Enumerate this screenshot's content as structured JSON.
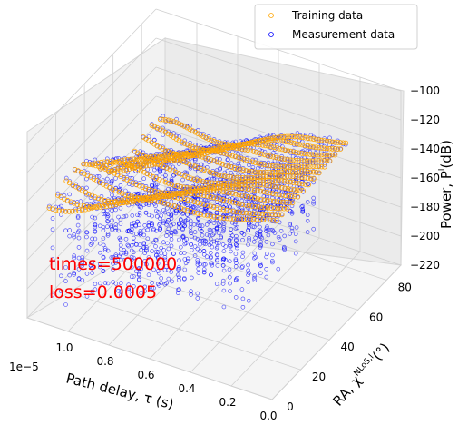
{
  "chart_data": {
    "type": "scatter",
    "projection": "3d",
    "grid": true,
    "legend_placement": "top-right",
    "xlabel": "Path delay, τ (s)",
    "x_offset_label": "1e−5",
    "ylabel": "RA, χ",
    "ylabel_sup": "NLoS,l",
    "ylabel_unit": "(°)",
    "zlabel": "Power, P",
    "zlabel_sup": "l",
    "zlabel_unit": "(dB)",
    "x_ticks": [
      "0.0",
      "0.2",
      "0.4",
      "0.6",
      "0.8",
      "1.0"
    ],
    "y_ticks": [
      "0",
      "20",
      "40",
      "60",
      "80"
    ],
    "z_ticks": [
      "−100",
      "−120",
      "−140",
      "−160",
      "−180",
      "−200",
      "−220"
    ],
    "xlim": [
      0,
      1.2
    ],
    "ylim": [
      0,
      90
    ],
    "zlim": [
      -220,
      -100
    ],
    "series": [
      {
        "name": "Training data",
        "color": "#ffa500",
        "marker": "open-circle"
      },
      {
        "name": "Measurement data",
        "color": "#0000ff",
        "marker": "open-circle"
      }
    ],
    "annotations": [
      "times=500000",
      "loss=0.0005"
    ]
  }
}
